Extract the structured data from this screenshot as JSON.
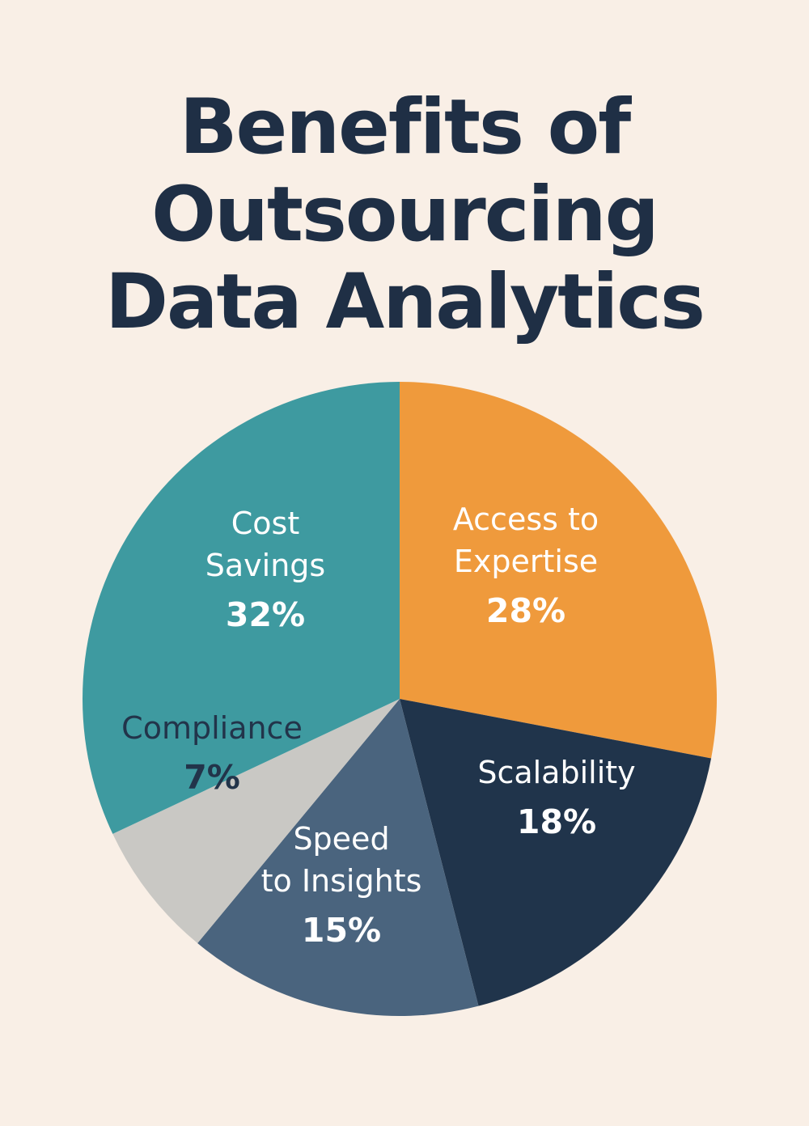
{
  "chart_data": {
    "type": "pie",
    "title_lines": [
      "Benefits of",
      "Outsourcing",
      "Data Analytics"
    ],
    "slices": [
      {
        "label_lines": [
          "Access to",
          "Expertise"
        ],
        "value": 28,
        "value_label": "28%",
        "color": "#ef9a3c",
        "text_color": "#ffffff"
      },
      {
        "label_lines": [
          "Scalability"
        ],
        "value": 18,
        "value_label": "18%",
        "color": "#20344b",
        "text_color": "#ffffff"
      },
      {
        "label_lines": [
          "Speed",
          "to Insights"
        ],
        "value": 15,
        "value_label": "15%",
        "color": "#4a647e",
        "text_color": "#ffffff"
      },
      {
        "label_lines": [
          "Compliance"
        ],
        "value": 7,
        "value_label": "7%",
        "color": "#c9c8c4",
        "text_color": "#22344a"
      },
      {
        "label_lines": [
          "Cost",
          "Savings"
        ],
        "value": 32,
        "value_label": "32%",
        "color": "#3e9aa0",
        "text_color": "#ffffff"
      }
    ]
  }
}
